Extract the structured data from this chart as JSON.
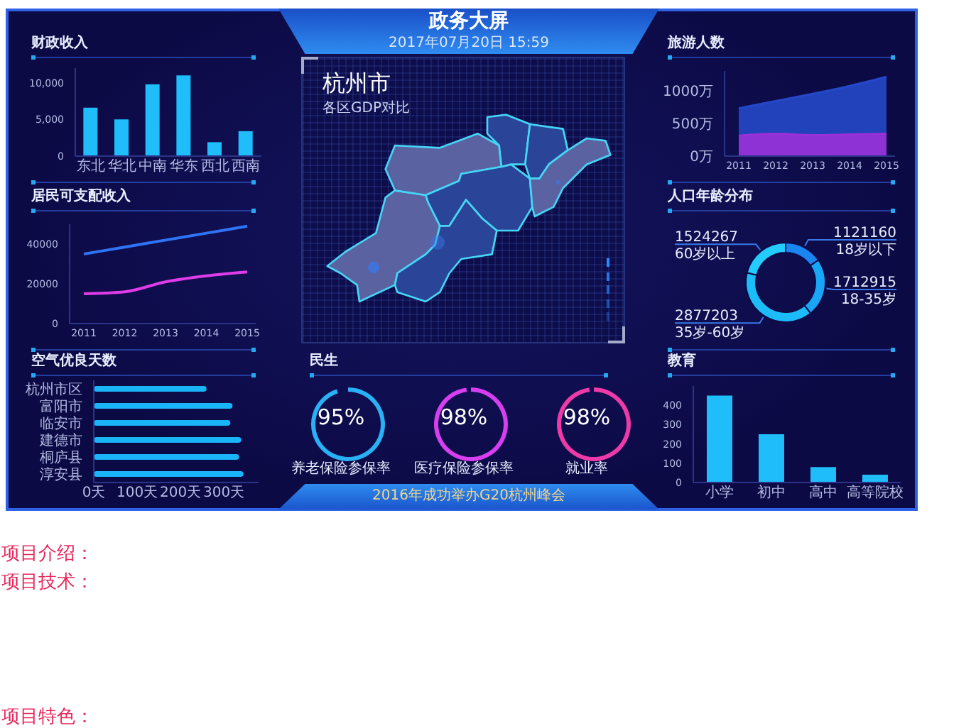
{
  "chart_data": [
    {
      "type": "other",
      "title": "政务大屏",
      "subtitle": "2017年07月20日 15:59"
    },
    {
      "type": "bar",
      "title": "财政收入",
      "categories": [
        "东北",
        "华北",
        "中南",
        "华东",
        "西北",
        "西南"
      ],
      "values": [
        6600,
        5000,
        9800,
        11000,
        1900,
        3400
      ],
      "color": "#1fbdfa",
      "ylim": [
        0,
        12000
      ],
      "yticks": [
        0,
        {
          "value": 5000,
          "label": "5,000"
        },
        {
          "value": 10000,
          "label": "10,000"
        }
      ]
    },
    {
      "type": "other",
      "title": "杭州市",
      "subtitle": "各区GDP对比"
    },
    {
      "type": "area",
      "title": "旅游人数",
      "categories": [
        "2011",
        "2012",
        "2013",
        "2014",
        "2015"
      ],
      "series": [
        {
          "color": "#2448c8",
          "values": [
            730,
            840,
            950,
            1070,
            1210
          ]
        },
        {
          "color": "#9a30d8",
          "values": [
            310,
            340,
            320,
            330,
            340
          ]
        }
      ],
      "ylim": [
        0,
        1300
      ],
      "yticks": [
        {
          "value": 0,
          "label": "0万"
        },
        {
          "value": 500,
          "label": "500万"
        },
        {
          "value": 1000,
          "label": "1000万"
        }
      ]
    },
    {
      "type": "line",
      "title": "居民可支配收入",
      "categories": [
        "2011",
        "2012",
        "2013",
        "2014",
        "2015"
      ],
      "series": [
        {
          "color": "#2f74f6",
          "values": [
            35000,
            38500,
            42000,
            45500,
            49000
          ]
        },
        {
          "color": "#de3ce8",
          "values": [
            15000,
            16000,
            21000,
            24000,
            26000
          ]
        }
      ],
      "ylim": [
        0,
        50000
      ],
      "yticks": [
        0,
        20000,
        40000
      ]
    },
    {
      "type": "donut",
      "title": "人口年龄分布",
      "categories": [
        "18岁以下",
        "18-35岁",
        "35岁-60岁",
        "60岁以上"
      ],
      "values": [
        1121160,
        1712915,
        2877203,
        1524267
      ],
      "colors": [
        "#1a84f0",
        "#1aa6f7",
        "#1cbcf9",
        "#24ccfd"
      ],
      "data_labels": true
    },
    {
      "type": "bar",
      "orientation": "horizontal",
      "title": "空气优良天数",
      "categories": [
        "杭州市区",
        "富阳市",
        "临安市",
        "建德市",
        "桐庐县",
        "淳安县"
      ],
      "values": [
        260,
        320,
        315,
        340,
        335,
        345
      ],
      "color": "#1ab4f8",
      "xlim": [
        0,
        380
      ],
      "xticks": [
        {
          "value": 0,
          "label": "0天"
        },
        {
          "value": 100,
          "label": "100天"
        },
        {
          "value": 200,
          "label": "200天"
        },
        {
          "value": 300,
          "label": "300天"
        }
      ]
    },
    {
      "type": "other",
      "title": "民生",
      "categories": [
        "养老保险参保率",
        "医疗保险参保率",
        "就业率"
      ],
      "values": [
        95,
        98,
        98
      ],
      "colors": [
        "#2ab0f5",
        "#d63ef0",
        "#ee3aa8"
      ],
      "value_labels": [
        "95%",
        "98%",
        "98%"
      ]
    },
    {
      "type": "bar",
      "title": "教育",
      "categories": [
        "小学",
        "初中",
        "高中",
        "高等院校"
      ],
      "values": [
        450,
        250,
        80,
        40
      ],
      "color": "#1fbdfa",
      "ylim": [
        0,
        500
      ],
      "yticks": [
        0,
        100,
        200,
        300,
        400
      ]
    },
    {
      "type": "other",
      "annotations": [
        "2016年成功举办G20杭州峰会"
      ]
    },
    {
      "type": "other",
      "annotations": [
        "项目介绍：",
        "项目技术：",
        "项目特色："
      ]
    }
  ]
}
